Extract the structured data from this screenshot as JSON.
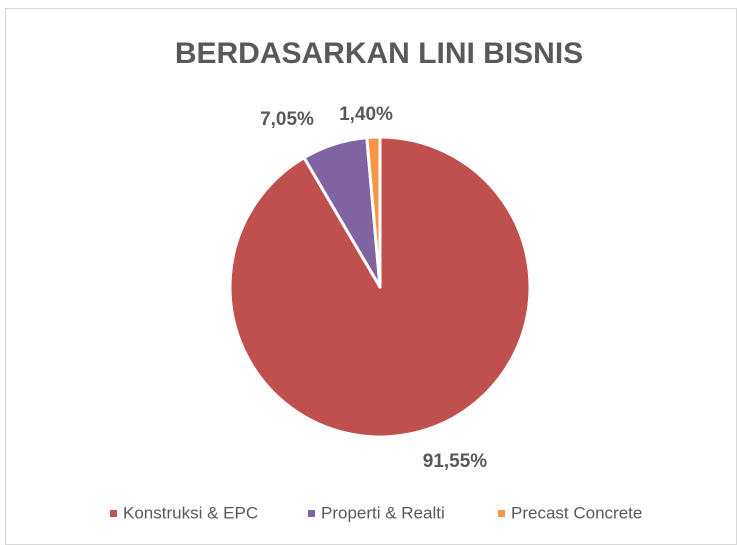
{
  "chart_data": {
    "type": "pie",
    "title": "BERDASARKAN LINI BISNIS",
    "categories": [
      "Konstruksi & EPC",
      "Properti & Realti",
      "Precast Concrete"
    ],
    "values": [
      91.55,
      7.05,
      1.4
    ],
    "value_labels": [
      "91,55%",
      "7,05%",
      "1,40%"
    ],
    "colors": [
      "#c0504d",
      "#8064a2",
      "#f79646"
    ],
    "legend": "bottom"
  }
}
